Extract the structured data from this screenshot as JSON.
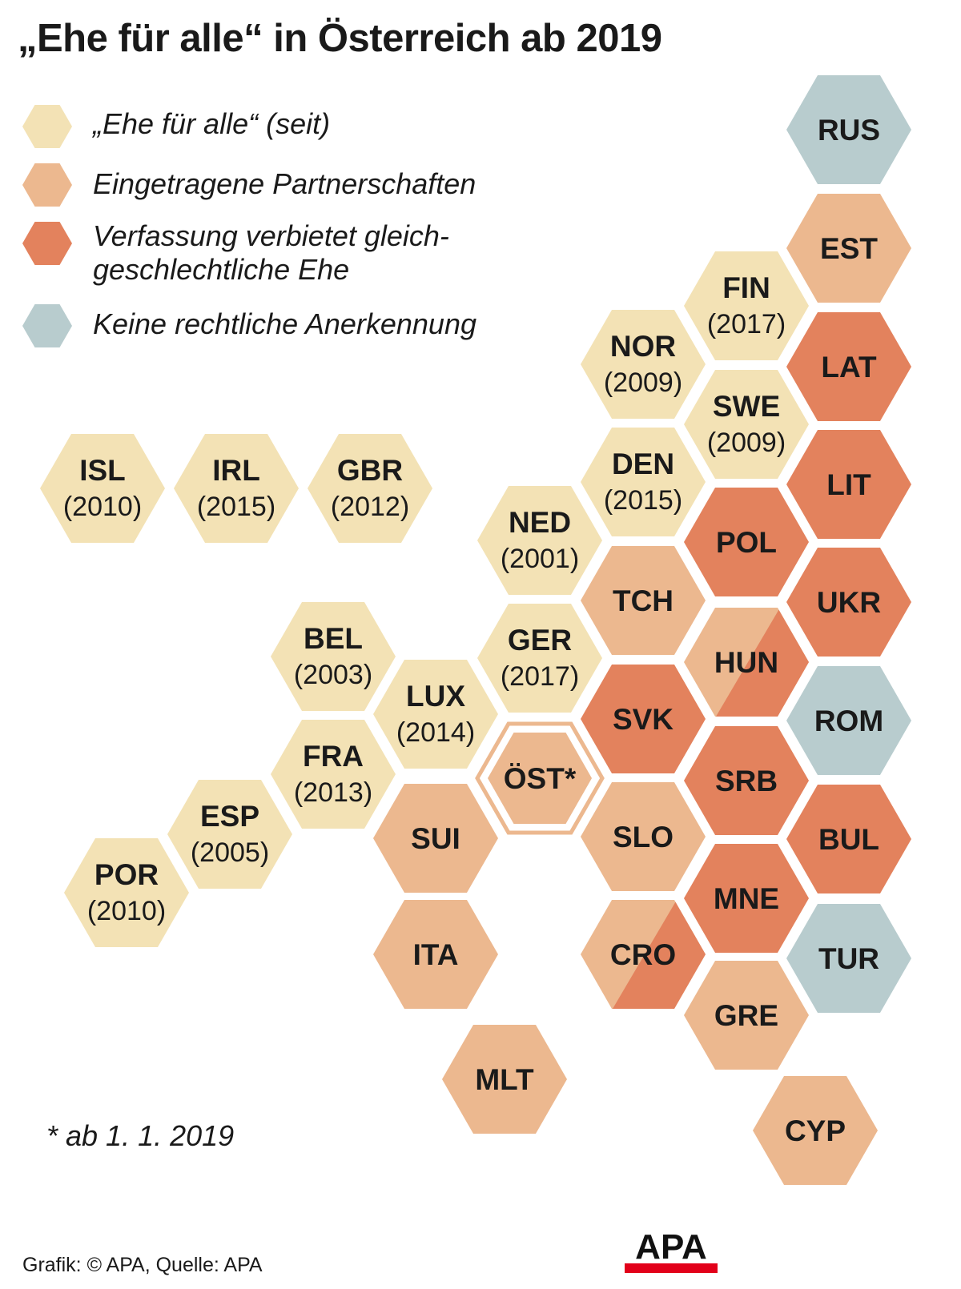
{
  "title": "„Ehe für alle“ in Österreich ab 2019",
  "colors": {
    "marriage": "#f3e2b5",
    "partnership": "#ecb88f",
    "banned": "#e3825d",
    "none": "#b8ccce",
    "oest_inner": "#ecb88f",
    "logo_red": "#e2001a"
  },
  "legend": [
    {
      "key": "marriage",
      "label": "„Ehe für alle“ (seit)"
    },
    {
      "key": "partnership",
      "label": "Eingetragene Partnerschaften"
    },
    {
      "key": "banned",
      "label_line1": "Verfassung verbietet gleich-",
      "label_line2": "geschlechtliche Ehe"
    },
    {
      "key": "none",
      "label": "Keine rechtliche Anerkennung"
    }
  ],
  "countries": [
    {
      "code": "RUS",
      "status": "none"
    },
    {
      "code": "EST",
      "status": "partnership"
    },
    {
      "code": "FIN",
      "year": "(2017)",
      "status": "marriage"
    },
    {
      "code": "LAT",
      "status": "banned"
    },
    {
      "code": "NOR",
      "year": "(2009)",
      "status": "marriage"
    },
    {
      "code": "SWE",
      "year": "(2009)",
      "status": "marriage"
    },
    {
      "code": "LIT",
      "status": "banned"
    },
    {
      "code": "ISL",
      "year": "(2010)",
      "status": "marriage"
    },
    {
      "code": "IRL",
      "year": "(2015)",
      "status": "marriage"
    },
    {
      "code": "GBR",
      "year": "(2012)",
      "status": "marriage"
    },
    {
      "code": "DEN",
      "year": "(2015)",
      "status": "marriage"
    },
    {
      "code": "NED",
      "year": "(2001)",
      "status": "marriage"
    },
    {
      "code": "POL",
      "status": "banned"
    },
    {
      "code": "TCH",
      "status": "partnership"
    },
    {
      "code": "UKR",
      "status": "banned"
    },
    {
      "code": "BEL",
      "year": "(2003)",
      "status": "marriage"
    },
    {
      "code": "GER",
      "year": "(2017)",
      "status": "marriage"
    },
    {
      "code": "HUN",
      "status": "partnership",
      "status2": "banned"
    },
    {
      "code": "LUX",
      "year": "(2014)",
      "status": "marriage"
    },
    {
      "code": "SVK",
      "status": "banned"
    },
    {
      "code": "ROM",
      "status": "none"
    },
    {
      "code": "FRA",
      "year": "(2013)",
      "status": "marriage"
    },
    {
      "code": "ÖST*",
      "status": "oest"
    },
    {
      "code": "SRB",
      "status": "banned"
    },
    {
      "code": "ESP",
      "year": "(2005)",
      "status": "marriage"
    },
    {
      "code": "SUI",
      "status": "partnership"
    },
    {
      "code": "SLO",
      "status": "partnership"
    },
    {
      "code": "BUL",
      "status": "banned"
    },
    {
      "code": "POR",
      "year": "(2010)",
      "status": "marriage"
    },
    {
      "code": "MNE",
      "status": "banned"
    },
    {
      "code": "ITA",
      "status": "partnership"
    },
    {
      "code": "CRO",
      "status": "partnership",
      "status2": "banned"
    },
    {
      "code": "TUR",
      "status": "none"
    },
    {
      "code": "GRE",
      "status": "partnership"
    },
    {
      "code": "MLT",
      "status": "partnership"
    },
    {
      "code": "CYP",
      "status": "partnership"
    }
  ],
  "footnote": "* ab 1. 1. 2019",
  "credit": "Grafik: © APA, Quelle: APA",
  "logo_text": "APA"
}
